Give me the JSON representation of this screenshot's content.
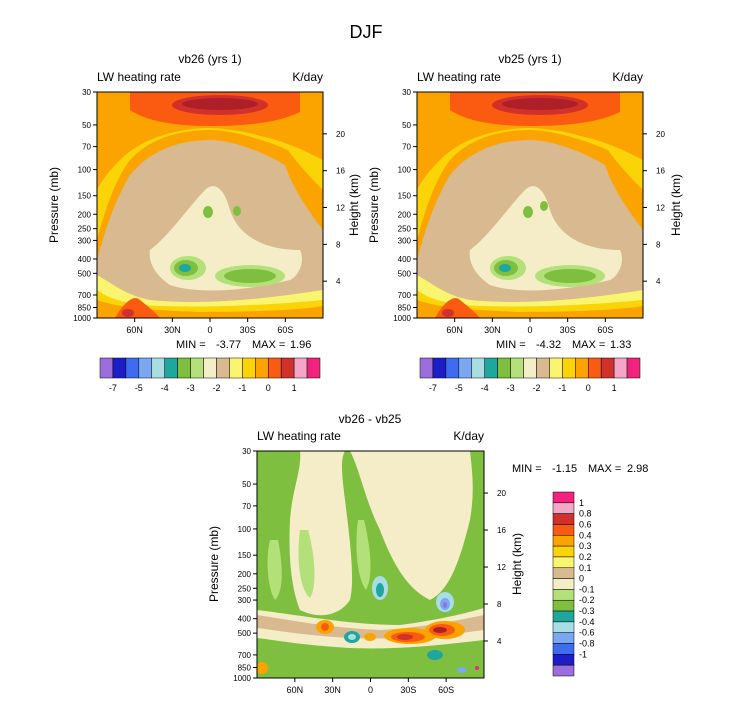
{
  "figure_title": "DJF",
  "colors": {
    "c0": "#9B6FDB",
    "c1": "#1C1CC8",
    "c2": "#3E6CF0",
    "c3": "#7AA6F2",
    "c4": "#A8DDE4",
    "c5": "#1FA69E",
    "c6": "#7FBF3F",
    "c7": "#B4E07A",
    "c8": "#F4EDC8",
    "c9": "#D9B98F",
    "c10": "#FAF56E",
    "c11": "#FBD408",
    "c12": "#FBA400",
    "c13": "#FB5B10",
    "c14": "#D1312A",
    "c15": "#AF1F2A",
    "c16": "#F4A6C6",
    "c17": "#F2237F"
  },
  "chart_data": [
    {
      "type": "heatmap",
      "title": "vb26 (yrs 1)",
      "left_label": "LW heating rate",
      "right_label": "K/day",
      "ylabel": "Pressure (mb)",
      "ylabel_right": "Height (km)",
      "pressure_ticks": [
        "1000",
        "850",
        "700",
        "500",
        "400",
        "300",
        "250",
        "200",
        "150",
        "100",
        "70",
        "50",
        "30"
      ],
      "height_ticks": [
        "4",
        "8",
        "12",
        "16",
        "20"
      ],
      "lat_ticks": [
        "60N",
        "30N",
        "0",
        "30S",
        "60S"
      ],
      "min_label": "MIN =",
      "min_value": "-3.77",
      "max_label": "MAX =",
      "max_value": "1.96",
      "colorbar_labels": [
        "-7",
        "-5",
        "-4",
        "-3",
        "-2",
        "-1",
        "0",
        "1"
      ]
    },
    {
      "type": "heatmap",
      "title": "vb25 (yrs 1)",
      "left_label": "LW heating rate",
      "right_label": "K/day",
      "ylabel": "Pressure (mb)",
      "ylabel_right": "Height (km)",
      "pressure_ticks": [
        "1000",
        "850",
        "700",
        "500",
        "400",
        "300",
        "250",
        "200",
        "150",
        "100",
        "70",
        "50",
        "30"
      ],
      "height_ticks": [
        "4",
        "8",
        "12",
        "16",
        "20"
      ],
      "lat_ticks": [
        "60N",
        "30N",
        "0",
        "30S",
        "60S"
      ],
      "min_label": "MIN =",
      "min_value": "-4.32",
      "max_label": "MAX =",
      "max_value": "1.33",
      "colorbar_labels": [
        "-7",
        "-5",
        "-4",
        "-3",
        "-2",
        "-1",
        "0",
        "1"
      ]
    },
    {
      "type": "heatmap",
      "title": "vb26 - vb25",
      "left_label": "LW heating rate",
      "right_label": "K/day",
      "ylabel": "Pressure (mb)",
      "ylabel_right": "Height (km)",
      "pressure_ticks": [
        "1000",
        "850",
        "700",
        "500",
        "400",
        "300",
        "250",
        "200",
        "150",
        "100",
        "70",
        "50",
        "30"
      ],
      "height_ticks": [
        "4",
        "8",
        "12",
        "16",
        "20"
      ],
      "lat_ticks": [
        "60N",
        "30N",
        "0",
        "30S",
        "60S"
      ],
      "min_label": "MIN =",
      "min_value": "-1.15",
      "max_label": "MAX =",
      "max_value": "2.98",
      "colorbar_labels": [
        "1",
        "0.8",
        "0.6",
        "0.4",
        "0.3",
        "0.2",
        "0.1",
        "0",
        "-0.1",
        "-0.2",
        "-0.3",
        "-0.4",
        "-0.6",
        "-0.8",
        "-1"
      ]
    }
  ]
}
